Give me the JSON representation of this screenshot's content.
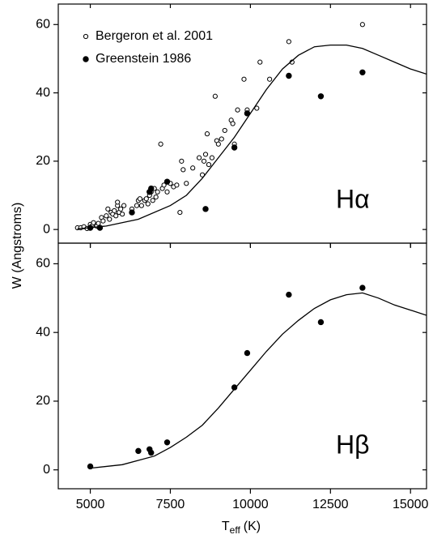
{
  "figure": {
    "ylabel": "W (Angstroms)",
    "xlabel": "T",
    "xlabel_sub": "eff",
    "xlabel_unit": "(K)"
  },
  "chart_data": [
    {
      "type": "scatter",
      "annotation": "Hα",
      "legend": "upper left",
      "show_xtick_labels": false,
      "xlim": [
        4000,
        15500
      ],
      "xticks": [
        5000,
        7500,
        10000,
        12500,
        15000
      ],
      "ylim": [
        -4,
        66
      ],
      "yticks": [
        0,
        20,
        40,
        60
      ],
      "series": [
        {
          "name": "Bergeron et al. 2001",
          "marker": "open",
          "color": "#000000",
          "x": [
            4600,
            4700,
            4800,
            4900,
            5000,
            5050,
            5100,
            5200,
            5250,
            5350,
            5400,
            5500,
            5550,
            5600,
            5650,
            5700,
            5750,
            5800,
            5850,
            5850,
            5900,
            5950,
            6000,
            6050,
            6300,
            6450,
            6500,
            6550,
            6600,
            6700,
            6750,
            6800,
            6850,
            6900,
            6950,
            7000,
            7050,
            7100,
            7200,
            7250,
            7300,
            7400,
            7500,
            7600,
            7700,
            7800,
            7850,
            7900,
            8000,
            8200,
            8400,
            8500,
            8550,
            8600,
            8650,
            8700,
            8800,
            8900,
            8950,
            9000,
            9100,
            9200,
            9400,
            9450,
            9500,
            9600,
            9800,
            9900,
            10200,
            10300,
            10600,
            11200,
            11300,
            13500
          ],
          "y": [
            0.5,
            0.5,
            0.8,
            0.3,
            1.5,
            1,
            2,
            1,
            1.8,
            3.5,
            2.5,
            4,
            6,
            3,
            5,
            4.5,
            5.5,
            4,
            7,
            8,
            5,
            6,
            4.5,
            7,
            6,
            7,
            8.5,
            9,
            7,
            8.5,
            9,
            7.5,
            10,
            11,
            8.5,
            12,
            9.5,
            11,
            25,
            12,
            13,
            11,
            13.5,
            12.5,
            13,
            5,
            20,
            17.5,
            13.5,
            18,
            21,
            16,
            20,
            22,
            28,
            19,
            21,
            39,
            26,
            25,
            26.5,
            29,
            32,
            31,
            25,
            35,
            44,
            35,
            35.5,
            49,
            44,
            55,
            49,
            60
          ]
        },
        {
          "name": "Greenstein 1986",
          "marker": "filled",
          "color": "#000000",
          "x": [
            5000,
            5300,
            6300,
            6850,
            6900,
            7400,
            8600,
            9500,
            9900,
            11200,
            12200,
            13500
          ],
          "y": [
            0.5,
            0.5,
            5,
            11,
            12,
            14,
            6,
            24,
            34,
            45,
            39,
            46
          ]
        },
        {
          "marker": "line",
          "color": "#000000",
          "x": [
            4600,
            5500,
            6500,
            7500,
            8000,
            8500,
            9000,
            9500,
            10000,
            10500,
            11000,
            11500,
            12000,
            12500,
            13000,
            13500,
            14000,
            14500,
            15000,
            15500
          ],
          "y": [
            0.2,
            1,
            3,
            7,
            10,
            15,
            21,
            27,
            34,
            41,
            47,
            51,
            53.5,
            54,
            54,
            53,
            51,
            49,
            47,
            45.5
          ]
        }
      ]
    },
    {
      "type": "scatter",
      "annotation": "Hβ",
      "show_xtick_labels": true,
      "xlim": [
        4000,
        15500
      ],
      "xticks": [
        5000,
        7500,
        10000,
        12500,
        15000
      ],
      "ylim": [
        -5.5,
        66
      ],
      "yticks": [
        0,
        20,
        40,
        60
      ],
      "series": [
        {
          "marker": "filled",
          "color": "#000000",
          "x": [
            5000,
            6500,
            6850,
            6900,
            7400,
            9500,
            9900,
            11200,
            12200,
            13500
          ],
          "y": [
            1,
            5.5,
            6,
            5,
            8,
            24,
            34,
            51,
            43,
            53
          ]
        },
        {
          "marker": "line",
          "color": "#000000",
          "x": [
            5000,
            6000,
            7000,
            7500,
            8000,
            8500,
            9000,
            9500,
            10000,
            10500,
            11000,
            11500,
            12000,
            12500,
            13000,
            13500,
            14000,
            14500,
            15000,
            15500
          ],
          "y": [
            0.5,
            1.5,
            4,
            6.5,
            9.5,
            13,
            18,
            23.5,
            29,
            34.5,
            39.5,
            43.5,
            47,
            49.5,
            51,
            51.5,
            50,
            48,
            46.5,
            45
          ]
        }
      ]
    }
  ]
}
